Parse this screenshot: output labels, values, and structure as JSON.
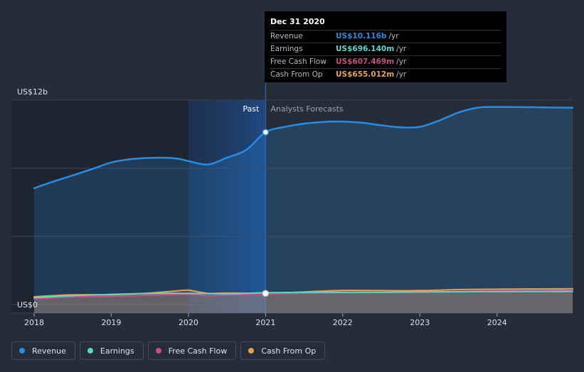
{
  "chart_data": {
    "type": "area",
    "y_axis_labels": {
      "top": "US$12b",
      "bottom": "US$0"
    },
    "ylim": [
      0,
      12
    ],
    "y_unit": "US$ billions",
    "x_ticks": [
      "2018",
      "2019",
      "2020",
      "2021",
      "2022",
      "2023",
      "2024"
    ],
    "xlim": [
      2018.0,
      2024.98
    ],
    "past_label": "Past",
    "forecast_label": "Analysts Forecasts",
    "divider_x": 2021.0,
    "highlight_range": [
      2020.0,
      2021.0
    ],
    "series": [
      {
        "name": "Revenue",
        "color": "#2b8be0",
        "points": [
          [
            2018.0,
            6.83
          ],
          [
            2018.25,
            7.22
          ],
          [
            2018.5,
            7.58
          ],
          [
            2018.75,
            7.95
          ],
          [
            2019.0,
            8.34
          ],
          [
            2019.25,
            8.53
          ],
          [
            2019.5,
            8.61
          ],
          [
            2019.75,
            8.61
          ],
          [
            2019.9,
            8.53
          ],
          [
            2020.0,
            8.42
          ],
          [
            2020.25,
            8.22
          ],
          [
            2020.5,
            8.62
          ],
          [
            2020.75,
            9.08
          ],
          [
            2021.0,
            10.116
          ],
          [
            2021.25,
            10.43
          ],
          [
            2021.5,
            10.62
          ],
          [
            2021.75,
            10.72
          ],
          [
            2022.0,
            10.74
          ],
          [
            2022.25,
            10.67
          ],
          [
            2022.5,
            10.52
          ],
          [
            2022.75,
            10.4
          ],
          [
            2023.0,
            10.43
          ],
          [
            2023.25,
            10.8
          ],
          [
            2023.5,
            11.27
          ],
          [
            2023.75,
            11.56
          ],
          [
            2024.0,
            11.6
          ],
          [
            2024.5,
            11.58
          ],
          [
            2024.98,
            11.55
          ]
        ]
      },
      {
        "name": "Earnings",
        "color": "#5ad7c6",
        "points": [
          [
            2018.0,
            0.4
          ],
          [
            2018.5,
            0.52
          ],
          [
            2019.0,
            0.6
          ],
          [
            2019.5,
            0.65
          ],
          [
            2020.0,
            0.66
          ],
          [
            2020.5,
            0.63
          ],
          [
            2021.0,
            0.696
          ],
          [
            2021.5,
            0.72
          ],
          [
            2022.0,
            0.72
          ],
          [
            2022.5,
            0.72
          ],
          [
            2023.0,
            0.74
          ],
          [
            2023.5,
            0.75
          ],
          [
            2024.0,
            0.76
          ],
          [
            2024.98,
            0.77
          ]
        ]
      },
      {
        "name": "Free Cash Flow",
        "color": "#c94e84",
        "points": [
          [
            2018.0,
            0.33
          ],
          [
            2018.5,
            0.44
          ],
          [
            2019.0,
            0.48
          ],
          [
            2019.5,
            0.55
          ],
          [
            2020.0,
            0.6
          ],
          [
            2020.25,
            0.51
          ],
          [
            2020.5,
            0.55
          ],
          [
            2021.0,
            0.607
          ],
          [
            2021.5,
            0.66
          ],
          [
            2022.0,
            0.7
          ],
          [
            2022.5,
            0.71
          ],
          [
            2023.0,
            0.72
          ],
          [
            2023.5,
            0.76
          ],
          [
            2024.0,
            0.8
          ],
          [
            2024.98,
            0.84
          ]
        ]
      },
      {
        "name": "Cash From Op",
        "color": "#e8a24c",
        "points": [
          [
            2018.0,
            0.46
          ],
          [
            2018.5,
            0.57
          ],
          [
            2019.0,
            0.58
          ],
          [
            2019.5,
            0.68
          ],
          [
            2019.85,
            0.8
          ],
          [
            2020.0,
            0.84
          ],
          [
            2020.25,
            0.66
          ],
          [
            2020.5,
            0.68
          ],
          [
            2021.0,
            0.655
          ],
          [
            2021.5,
            0.74
          ],
          [
            2022.0,
            0.83
          ],
          [
            2022.5,
            0.82
          ],
          [
            2023.0,
            0.82
          ],
          [
            2023.5,
            0.88
          ],
          [
            2024.0,
            0.9
          ],
          [
            2024.98,
            0.93
          ]
        ]
      }
    ]
  },
  "tooltip": {
    "date": "Dec 31 2020",
    "rows": [
      {
        "label": "Revenue",
        "value": "US$10.116b",
        "unit": "/yr",
        "color": "#2b8be0"
      },
      {
        "label": "Earnings",
        "value": "US$696.140m",
        "unit": "/yr",
        "color": "#5ad7c6"
      },
      {
        "label": "Free Cash Flow",
        "value": "US$607.469m",
        "unit": "/yr",
        "color": "#c94e84"
      },
      {
        "label": "Cash From Op",
        "value": "US$655.012m",
        "unit": "/yr",
        "color": "#e8a24c"
      }
    ]
  },
  "legend": [
    {
      "label": "Revenue",
      "color": "#2b8be0"
    },
    {
      "label": "Earnings",
      "color": "#5ad7c6"
    },
    {
      "label": "Free Cash Flow",
      "color": "#c94e84"
    },
    {
      "label": "Cash From Op",
      "color": "#e8a24c"
    }
  ]
}
